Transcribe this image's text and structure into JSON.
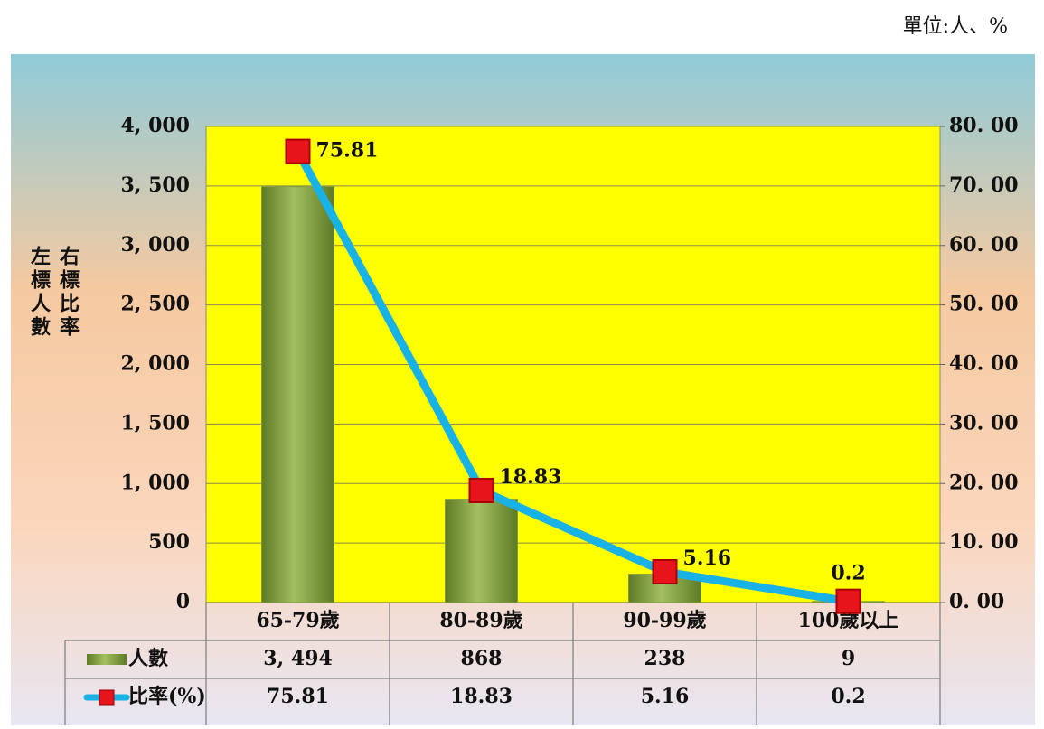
{
  "chart_data": {
    "type": "bar",
    "unit": "單位:人、%",
    "y_label": "左標人數",
    "y2_label": "右標比率",
    "categories": [
      "65-79歲",
      "80-89歲",
      "90-99歲",
      "100歲以上"
    ],
    "series": [
      {
        "name": "人數",
        "type": "bar",
        "color": "#7d9c3c",
        "values": [
          3494,
          868,
          238,
          9
        ],
        "value_labels": [
          "3, 494",
          "868",
          "238",
          "9"
        ]
      },
      {
        "name": "比率(%)",
        "type": "line",
        "axis": "y2",
        "color": "#19b2e6",
        "marker_color": "#e8141c",
        "values": [
          75.81,
          18.83,
          5.16,
          0.2
        ]
      }
    ],
    "ylim": [
      0,
      4000
    ],
    "yticks": [
      0,
      500,
      {
        "value": 1000,
        "label": "1, 000"
      },
      {
        "value": 1500,
        "label": "1, 500"
      },
      {
        "value": 2000,
        "label": "2, 000"
      },
      {
        "value": 2500,
        "label": "2, 500"
      },
      {
        "value": 3000,
        "label": "3, 000"
      },
      {
        "value": 3500,
        "label": "3, 500"
      },
      {
        "value": 4000,
        "label": "4, 000"
      }
    ],
    "y2lim": [
      0,
      80
    ],
    "y2ticks": [
      {
        "value": 0,
        "label": "0. 00"
      },
      {
        "value": 10,
        "label": "10. 00"
      },
      {
        "value": 20,
        "label": "20. 00"
      },
      {
        "value": 30,
        "label": "30. 00"
      },
      {
        "value": 40,
        "label": "40. 00"
      },
      {
        "value": 50,
        "label": "50. 00"
      },
      {
        "value": 60,
        "label": "60. 00"
      },
      {
        "value": 70,
        "label": "70. 00"
      },
      {
        "value": 80,
        "label": "80. 00"
      }
    ],
    "grid": true,
    "plot_color": "#ffff00"
  }
}
